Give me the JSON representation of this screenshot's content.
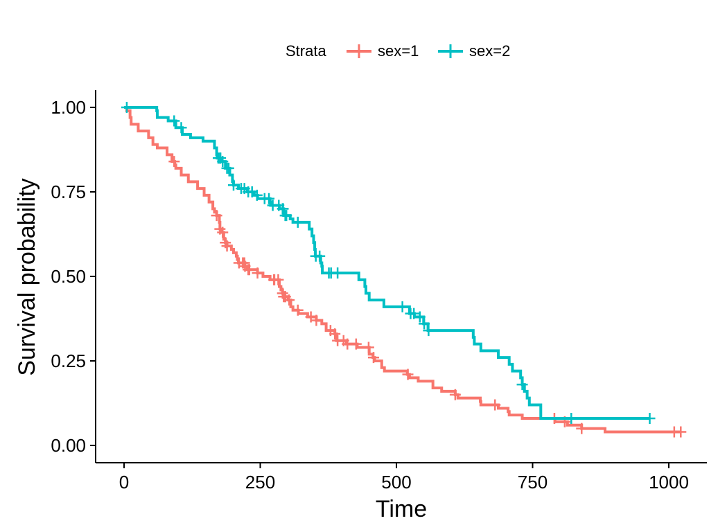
{
  "chart_data": {
    "type": "line",
    "subtype": "kaplan-meier step curve",
    "title": "",
    "xlabel": "Time",
    "ylabel": "Survival probability",
    "xlim": [
      0,
      1022
    ],
    "ylim": [
      0,
      1
    ],
    "x_ticks": [
      0,
      250,
      500,
      750,
      1000
    ],
    "x_tick_labels": [
      "0",
      "250",
      "500",
      "750",
      "1000"
    ],
    "y_ticks": [
      0,
      0.25,
      0.5,
      0.75,
      1.0
    ],
    "y_tick_labels": [
      "0.00",
      "0.25",
      "0.50",
      "0.75",
      "1.00"
    ],
    "grid": false,
    "legend": {
      "title": "Strata",
      "position": "top",
      "entries": [
        "sex=1",
        "sex=2"
      ]
    },
    "series": [
      {
        "name": "sex=1",
        "color": "#F8766D",
        "steps": [
          [
            0,
            1.0
          ],
          [
            5,
            0.99
          ],
          [
            11,
            0.97
          ],
          [
            13,
            0.95
          ],
          [
            26,
            0.93
          ],
          [
            45,
            0.91
          ],
          [
            53,
            0.89
          ],
          [
            61,
            0.88
          ],
          [
            79,
            0.86
          ],
          [
            88,
            0.84
          ],
          [
            93,
            0.83
          ],
          [
            95,
            0.82
          ],
          [
            105,
            0.8
          ],
          [
            118,
            0.78
          ],
          [
            135,
            0.76
          ],
          [
            147,
            0.74
          ],
          [
            156,
            0.72
          ],
          [
            163,
            0.7
          ],
          [
            166,
            0.69
          ],
          [
            170,
            0.68
          ],
          [
            175,
            0.66
          ],
          [
            176,
            0.64
          ],
          [
            180,
            0.63
          ],
          [
            183,
            0.61
          ],
          [
            186,
            0.6
          ],
          [
            189,
            0.59
          ],
          [
            197,
            0.58
          ],
          [
            201,
            0.57
          ],
          [
            206,
            0.56
          ],
          [
            208,
            0.55
          ],
          [
            210,
            0.54
          ],
          [
            218,
            0.54
          ],
          [
            222,
            0.53
          ],
          [
            226,
            0.52
          ],
          [
            245,
            0.51
          ],
          [
            255,
            0.5
          ],
          [
            268,
            0.49
          ],
          [
            285,
            0.47
          ],
          [
            288,
            0.46
          ],
          [
            291,
            0.45
          ],
          [
            293,
            0.44
          ],
          [
            301,
            0.43
          ],
          [
            306,
            0.41
          ],
          [
            310,
            0.4
          ],
          [
            320,
            0.39
          ],
          [
            337,
            0.38
          ],
          [
            353,
            0.37
          ],
          [
            363,
            0.36
          ],
          [
            371,
            0.34
          ],
          [
            387,
            0.33
          ],
          [
            390,
            0.31
          ],
          [
            408,
            0.3
          ],
          [
            428,
            0.29
          ],
          [
            450,
            0.27
          ],
          [
            457,
            0.26
          ],
          [
            460,
            0.25
          ],
          [
            473,
            0.23
          ],
          [
            478,
            0.22
          ],
          [
            520,
            0.21
          ],
          [
            524,
            0.2
          ],
          [
            533,
            0.2
          ],
          [
            540,
            0.19
          ],
          [
            567,
            0.17
          ],
          [
            583,
            0.16
          ],
          [
            608,
            0.15
          ],
          [
            613,
            0.14
          ],
          [
            654,
            0.13
          ],
          [
            655,
            0.12
          ],
          [
            687,
            0.11
          ],
          [
            705,
            0.1
          ],
          [
            707,
            0.09
          ],
          [
            731,
            0.08
          ],
          [
            765,
            0.08
          ],
          [
            791,
            0.07
          ],
          [
            814,
            0.06
          ],
          [
            840,
            0.05
          ],
          [
            883,
            0.04
          ],
          [
            1010,
            0.04
          ],
          [
            1022,
            0.04
          ]
        ],
        "censor_times": [
          92,
          170,
          176,
          181,
          186,
          189,
          211,
          218,
          221,
          222,
          228,
          230,
          245,
          275,
          276,
          283,
          291,
          293,
          296,
          296,
          303,
          319,
          343,
          353,
          379,
          387,
          392,
          403,
          410,
          426,
          449,
          458,
          521,
          608,
          681,
          790,
          809,
          840,
          1010,
          1022
        ]
      },
      {
        "name": "sex=2",
        "color": "#00BFC4",
        "steps": [
          [
            0,
            1.0
          ],
          [
            60,
            0.99
          ],
          [
            61,
            0.97
          ],
          [
            81,
            0.96
          ],
          [
            95,
            0.94
          ],
          [
            107,
            0.92
          ],
          [
            122,
            0.91
          ],
          [
            145,
            0.9
          ],
          [
            166,
            0.88
          ],
          [
            170,
            0.86
          ],
          [
            171,
            0.85
          ],
          [
            180,
            0.84
          ],
          [
            186,
            0.82
          ],
          [
            194,
            0.8
          ],
          [
            199,
            0.78
          ],
          [
            201,
            0.77
          ],
          [
            210,
            0.76
          ],
          [
            226,
            0.75
          ],
          [
            239,
            0.74
          ],
          [
            245,
            0.73
          ],
          [
            268,
            0.72
          ],
          [
            269,
            0.71
          ],
          [
            285,
            0.7
          ],
          [
            293,
            0.68
          ],
          [
            305,
            0.67
          ],
          [
            310,
            0.66
          ],
          [
            340,
            0.64
          ],
          [
            345,
            0.62
          ],
          [
            348,
            0.6
          ],
          [
            350,
            0.58
          ],
          [
            351,
            0.56
          ],
          [
            361,
            0.54
          ],
          [
            363,
            0.53
          ],
          [
            364,
            0.51
          ],
          [
            431,
            0.49
          ],
          [
            442,
            0.47
          ],
          [
            444,
            0.45
          ],
          [
            450,
            0.43
          ],
          [
            477,
            0.41
          ],
          [
            524,
            0.39
          ],
          [
            533,
            0.38
          ],
          [
            550,
            0.36
          ],
          [
            558,
            0.34
          ],
          [
            641,
            0.32
          ],
          [
            643,
            0.3
          ],
          [
            655,
            0.28
          ],
          [
            687,
            0.26
          ],
          [
            707,
            0.24
          ],
          [
            713,
            0.22
          ],
          [
            728,
            0.2
          ],
          [
            731,
            0.18
          ],
          [
            735,
            0.16
          ],
          [
            740,
            0.14
          ],
          [
            744,
            0.12
          ],
          [
            765,
            0.08
          ],
          [
            965,
            0.08
          ]
        ],
        "censor_times": [
          5,
          92,
          105,
          173,
          176,
          177,
          181,
          189,
          192,
          201,
          215,
          221,
          228,
          235,
          244,
          258,
          266,
          273,
          284,
          291,
          292,
          296,
          298,
          319,
          352,
          359,
          376,
          380,
          392,
          511,
          526,
          532,
          543,
          551,
          559,
          731,
          821,
          965
        ]
      }
    ]
  }
}
